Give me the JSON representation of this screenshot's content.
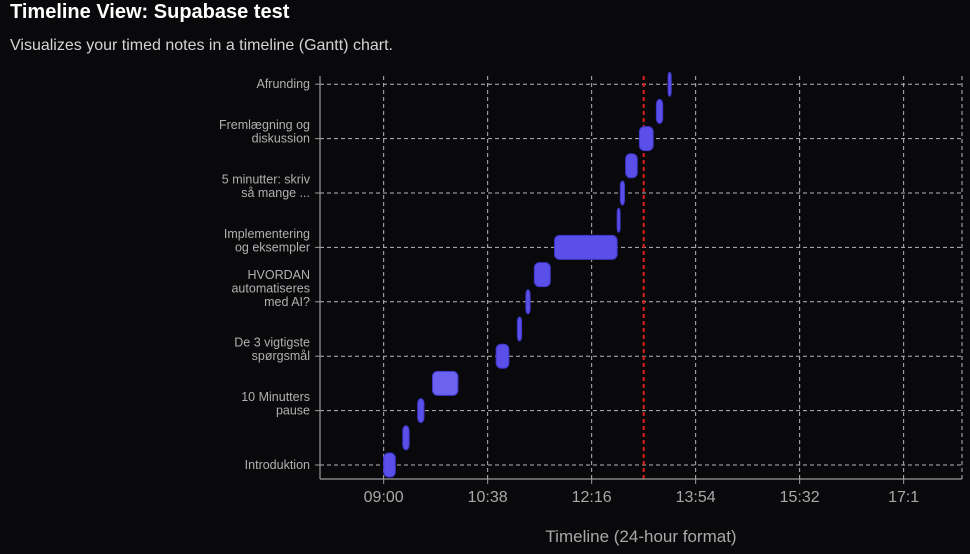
{
  "page": {
    "title": "Timeline View: Supabase test",
    "subtitle": "Visualizes your timed notes in a timeline (Gantt) chart."
  },
  "chart_data": {
    "type": "gantt",
    "xlabel": "Timeline (24-hour format)",
    "x_tick_labels": [
      "09:00",
      "10:38",
      "12:16",
      "13:54",
      "15:32",
      "17:1"
    ],
    "x_range_minutes": [
      480,
      1085
    ],
    "x_tick_minutes": [
      540,
      638,
      736,
      834,
      932,
      1030
    ],
    "current_time_minutes": 785,
    "grid": true,
    "categories": [
      {
        "lines": [
          "Introduktion"
        ]
      },
      {
        "lines": [
          "10 Minutters",
          "pause"
        ]
      },
      {
        "lines": [
          "De 3 vigtigste",
          "spørgsmål"
        ]
      },
      {
        "lines": [
          "HVORDAN",
          "automatiseres",
          "med AI?"
        ]
      },
      {
        "lines": [
          "Implementering",
          "og eksempler"
        ]
      },
      {
        "lines": [
          "5 minutter: skriv",
          "så mange ..."
        ]
      },
      {
        "lines": [
          "Fremlægning og",
          "diskussion"
        ]
      },
      {
        "lines": [
          "Afrunding"
        ]
      }
    ],
    "tasks": [
      {
        "start": 540,
        "end": 551,
        "row": 0.0
      },
      {
        "start": 558,
        "end": 564,
        "row": 0.5
      },
      {
        "start": 572,
        "end": 578,
        "row": 1.0
      },
      {
        "start": 586,
        "end": 610,
        "row": 1.5
      },
      {
        "start": 646,
        "end": 658,
        "row": 2.0
      },
      {
        "start": 666,
        "end": 670,
        "row": 2.5
      },
      {
        "start": 674,
        "end": 678,
        "row": 3.0
      },
      {
        "start": 682,
        "end": 697,
        "row": 3.5
      },
      {
        "start": 701,
        "end": 760,
        "row": 4.0
      },
      {
        "start": 760,
        "end": 762,
        "row": 4.5
      },
      {
        "start": 763,
        "end": 767,
        "row": 5.0
      },
      {
        "start": 768,
        "end": 779,
        "row": 5.5
      },
      {
        "start": 781,
        "end": 794,
        "row": 6.0
      },
      {
        "start": 797,
        "end": 803,
        "row": 6.5
      },
      {
        "start": 808,
        "end": 811,
        "row": 7.0
      }
    ],
    "colors": {
      "bar": "#5a4fe8",
      "bar_alt": "#6b63f0",
      "current_line": "#e11d1d",
      "grid": "#b8b8b8"
    }
  }
}
